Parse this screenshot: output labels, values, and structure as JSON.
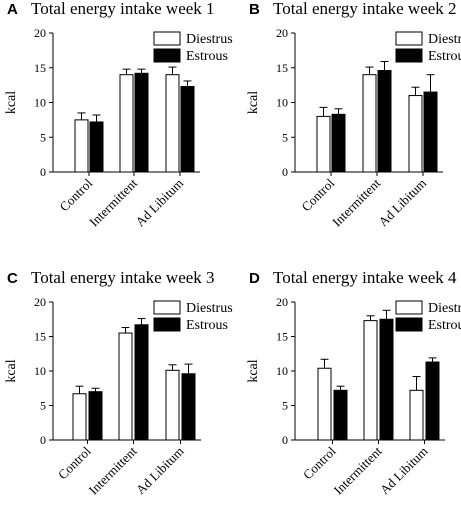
{
  "chart_data": [
    {
      "type": "bar",
      "panel": "A",
      "title": "Total energy intake week 1",
      "ylabel": "kcal",
      "ylim": [
        0,
        20
      ],
      "yticks": [
        "0",
        "5",
        "10",
        "15",
        "20"
      ],
      "categories": [
        "Control",
        "Intermittent",
        "Ad Libitum"
      ],
      "legend": "top-right",
      "series": [
        {
          "name": "Diestrus",
          "fill": "#ffffff",
          "values": [
            7.5,
            14.0,
            14.0
          ],
          "errors": [
            1.0,
            0.8,
            1.1
          ]
        },
        {
          "name": "Estrous",
          "fill": "#000000",
          "values": [
            7.2,
            14.2,
            12.3
          ],
          "errors": [
            1.0,
            0.6,
            0.8
          ]
        }
      ]
    },
    {
      "type": "bar",
      "panel": "B",
      "title": "Total energy intake week 2",
      "ylabel": "kcal",
      "ylim": [
        0,
        20
      ],
      "yticks": [
        "0",
        "5",
        "10",
        "15",
        "20"
      ],
      "categories": [
        "Control",
        "Intermittent",
        "Ad Libitum"
      ],
      "legend": "top-right",
      "series": [
        {
          "name": "Diestrus",
          "fill": "#ffffff",
          "values": [
            8.0,
            14.0,
            11.0
          ],
          "errors": [
            1.3,
            1.1,
            1.2
          ]
        },
        {
          "name": "Estrous",
          "fill": "#000000",
          "values": [
            8.3,
            14.6,
            11.5
          ],
          "errors": [
            0.8,
            1.3,
            2.5
          ]
        }
      ]
    },
    {
      "type": "bar",
      "panel": "C",
      "title": "Total energy intake week 3",
      "ylabel": "kcal",
      "ylim": [
        0,
        20
      ],
      "yticks": [
        "0",
        "5",
        "10",
        "15",
        "20"
      ],
      "categories": [
        "Control",
        "Intermittent",
        "Ad Libitum"
      ],
      "legend": "top-right",
      "series": [
        {
          "name": "Diestrus",
          "fill": "#ffffff",
          "values": [
            6.7,
            15.5,
            10.1
          ],
          "errors": [
            1.1,
            0.8,
            0.8
          ]
        },
        {
          "name": "Estrous",
          "fill": "#000000",
          "values": [
            7.0,
            16.7,
            9.6
          ],
          "errors": [
            0.5,
            0.9,
            1.4
          ]
        }
      ]
    },
    {
      "type": "bar",
      "panel": "D",
      "title": "Total energy intake week 4",
      "ylabel": "kcal",
      "ylim": [
        0,
        20
      ],
      "yticks": [
        "0",
        "5",
        "10",
        "15",
        "20"
      ],
      "categories": [
        "Control",
        "Intermittent",
        "Ad Libitum"
      ],
      "legend": "top-right",
      "series": [
        {
          "name": "Diestrus",
          "fill": "#ffffff",
          "values": [
            10.4,
            17.3,
            7.2
          ],
          "errors": [
            1.3,
            0.7,
            2.0
          ]
        },
        {
          "name": "Estrous",
          "fill": "#000000",
          "values": [
            7.2,
            17.5,
            11.3
          ],
          "errors": [
            0.6,
            1.3,
            0.6
          ]
        }
      ]
    }
  ]
}
